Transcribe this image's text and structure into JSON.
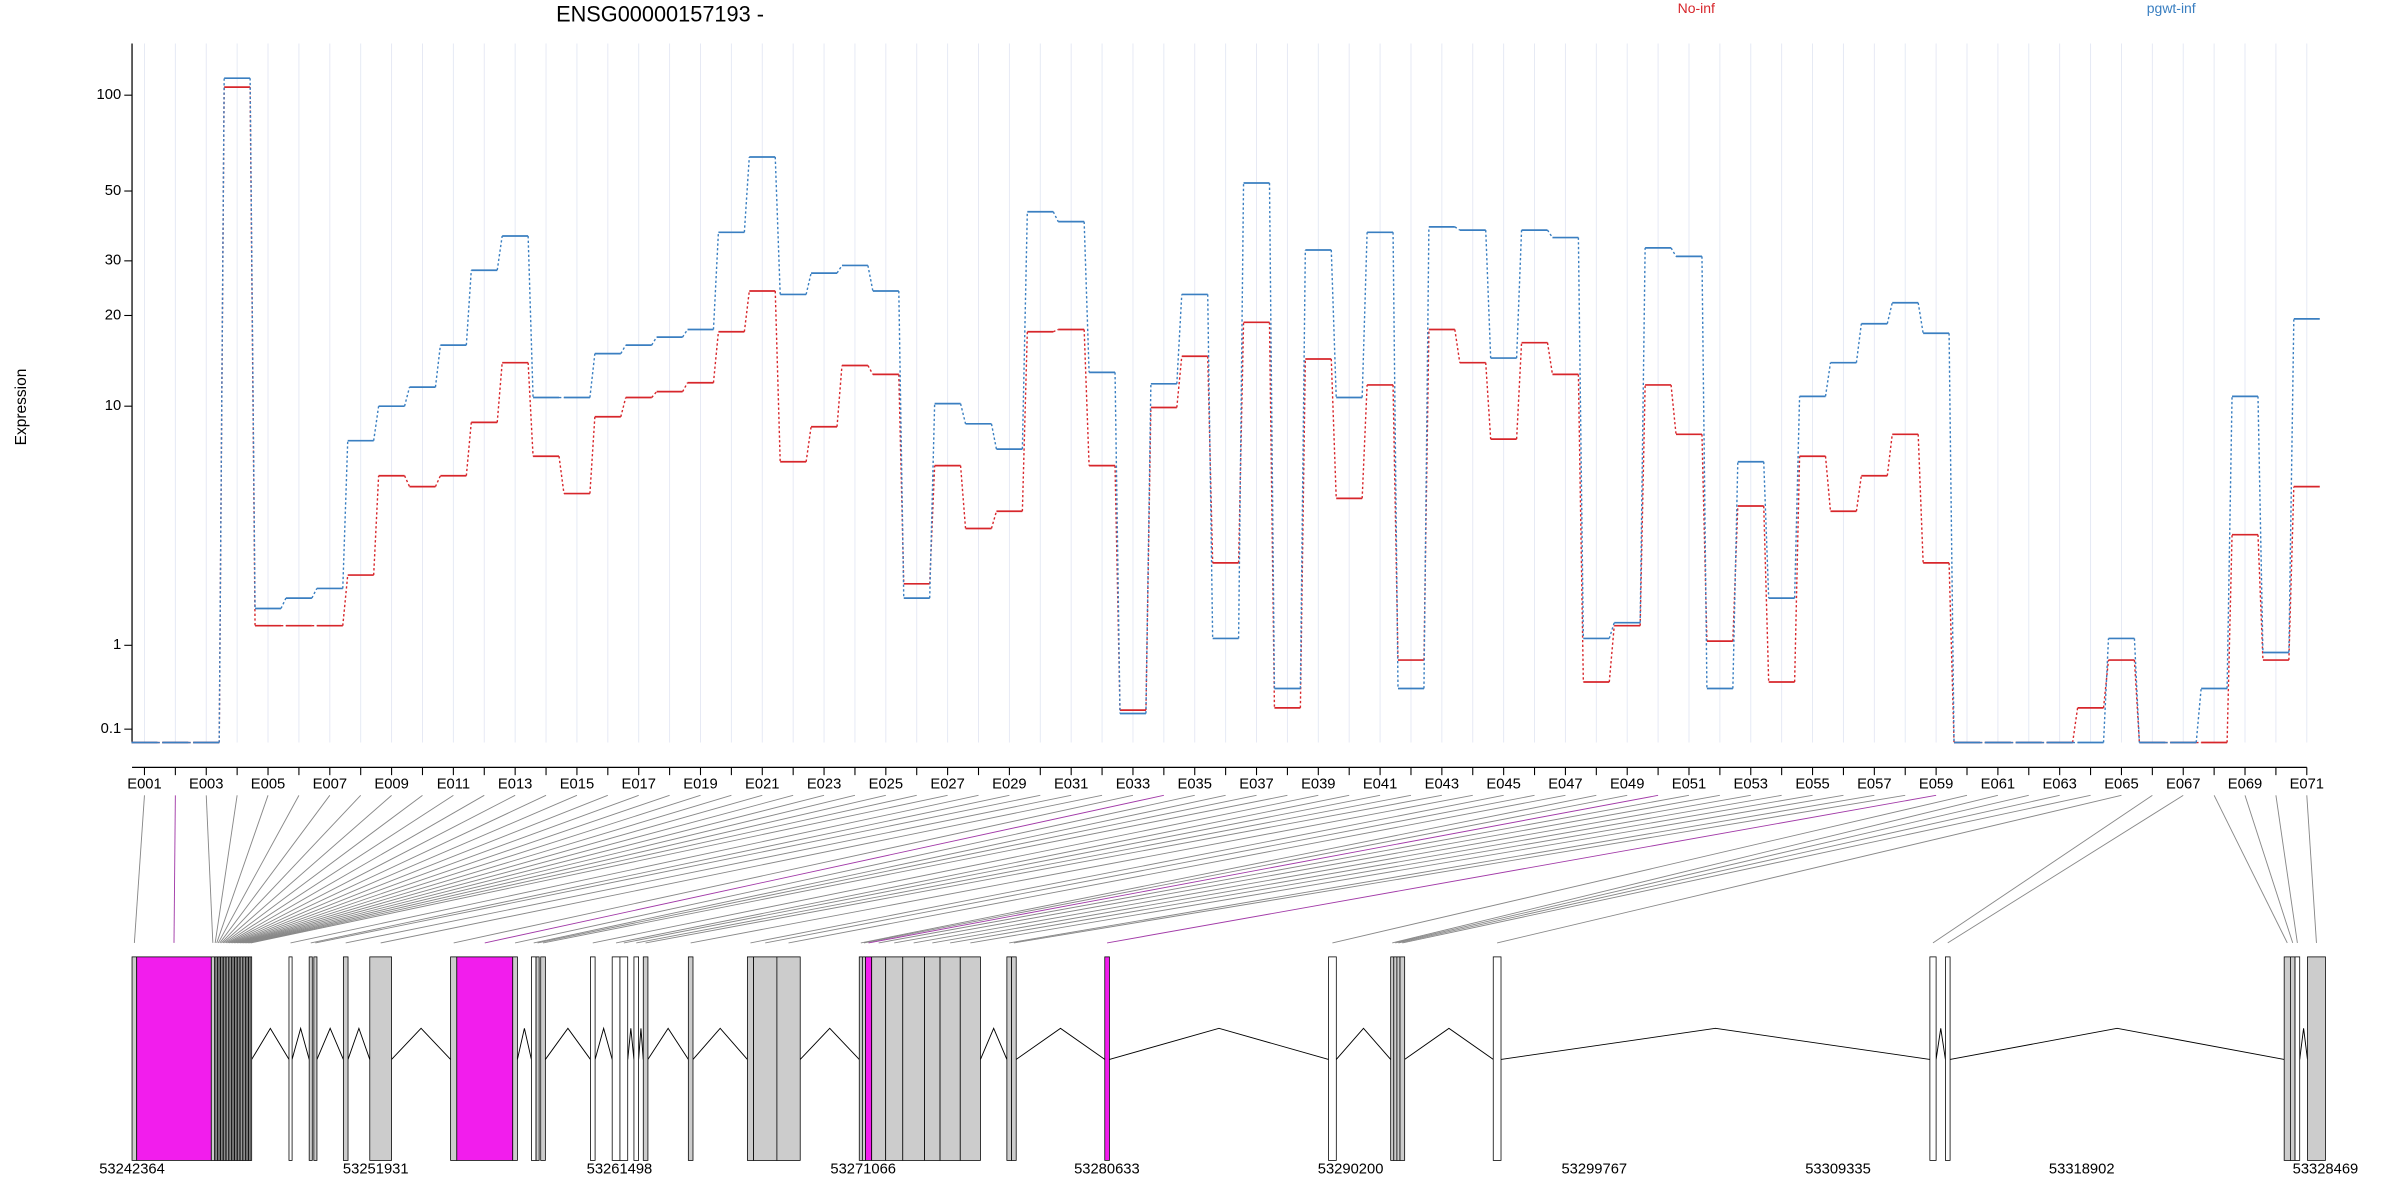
{
  "chart_data": {
    "type": "line",
    "title": "ENSG00000157193 -",
    "y_label": "Expression",
    "yscale": "log1p",
    "steps": true,
    "grid": true,
    "categories": [
      "E001",
      null,
      "E003",
      null,
      "E005",
      null,
      "E007",
      null,
      "E009",
      null,
      "E011",
      null,
      "E013",
      null,
      "E015",
      null,
      "E017",
      null,
      "E019",
      null,
      "E021",
      null,
      "E023",
      null,
      "E025",
      null,
      "E027",
      null,
      "E029",
      null,
      "E031",
      null,
      "E033",
      null,
      "E035",
      null,
      "E037",
      null,
      "E039",
      null,
      "E041",
      null,
      "E043",
      null,
      "E045",
      null,
      "E047",
      null,
      "E049",
      null,
      "E051",
      null,
      "E053",
      null,
      "E055",
      null,
      "E057",
      null,
      "E059",
      null,
      "E061",
      null,
      "E063",
      null,
      "E065",
      null,
      "E067",
      null,
      "E069",
      null,
      "E071"
    ],
    "series": [
      {
        "name": "No-inf",
        "color": "#d7262b",
        "values": [
          0,
          0,
          0,
          106,
          1.3,
          1.3,
          1.3,
          2.3,
          5.7,
          5.2,
          5.7,
          8.8,
          14,
          6.7,
          4.9,
          9.2,
          10.7,
          11.2,
          12,
          17.7,
          24,
          6.4,
          8.5,
          13.7,
          12.8,
          2.1,
          6.2,
          3.6,
          4.2,
          17.7,
          18,
          6.2,
          0.26,
          9.9,
          14.7,
          2.6,
          19,
          0.28,
          14.4,
          4.7,
          11.8,
          0.8,
          18,
          14,
          7.7,
          16.3,
          12.8,
          0.54,
          1.3,
          11.8,
          8,
          1.06,
          4.4,
          0.54,
          6.7,
          4.2,
          5.7,
          8,
          2.6,
          0,
          0,
          0,
          0,
          0.28,
          0.8,
          0,
          0,
          0,
          3.4,
          0.8,
          5.2
        ]
      },
      {
        "name": "pgwt-inf",
        "color": "#3a7fc1",
        "values": [
          0,
          0,
          0,
          113,
          1.6,
          1.8,
          2.0,
          7.6,
          10,
          11.6,
          16,
          28,
          36,
          10.7,
          10.7,
          15,
          16,
          17,
          18,
          37,
          64,
          23.4,
          27.4,
          29,
          24,
          1.8,
          10.2,
          8.7,
          7.1,
          43,
          40,
          13,
          0.23,
          11.9,
          23.4,
          1.1,
          53,
          0.47,
          32.5,
          10.7,
          37,
          0.47,
          38.5,
          37.6,
          14.5,
          37.6,
          35.6,
          1.1,
          1.35,
          33,
          31,
          0.47,
          6.4,
          1.8,
          10.8,
          14,
          18.8,
          22,
          17.5,
          0,
          0,
          0,
          0,
          0,
          1.1,
          0,
          0,
          0.47,
          10.8,
          0.9,
          19.5
        ]
      }
    ],
    "ylim": [
      0,
      145
    ],
    "yticks": [
      0.1,
      1,
      10,
      20,
      30,
      50,
      100
    ],
    "gene_model": {
      "xlim": [
        53242364,
        53328469
      ],
      "xticks": [
        53242364,
        53251931,
        53261498,
        53271066,
        53280633,
        53290200,
        53299767,
        53309335,
        53318902,
        53328469
      ],
      "starts": [
        53242364,
        53242547,
        53245475,
        53245597,
        53245658,
        53245719,
        53245780,
        53245841,
        53245902,
        53245963,
        53246024,
        53246085,
        53246146,
        53246207,
        53246268,
        53246329,
        53246390,
        53246451,
        53246512,
        53246573,
        53246634,
        53246695,
        53246756,
        53246817,
        53246878,
        53246939,
        53247000,
        53248525,
        53249318,
        53249501,
        53250660,
        53251697,
        53254869,
        53255113,
        53257309,
        53258041,
        53258224,
        53258407,
        53260359,
        53261213,
        53261518,
        53262067,
        53262433,
        53264202,
        53266520,
        53266764,
        53267679,
        53270912,
        53271034,
        53271156,
        53271400,
        53271949,
        53272620,
        53273474,
        53274084,
        53274877,
        53276707,
        53276890,
        53280550,
        53289334,
        53291774,
        53291896,
        53292018,
        53292140,
        53295800,
        53312941,
        53313551,
        53326849,
        53327093,
        53327276,
        53327764
      ],
      "ends": [
        53242547,
        53245475,
        53245597,
        53245658,
        53245719,
        53245780,
        53245841,
        53245902,
        53245963,
        53246024,
        53246085,
        53246146,
        53246207,
        53246268,
        53246329,
        53246390,
        53246451,
        53246512,
        53246573,
        53246634,
        53246695,
        53246756,
        53246817,
        53246878,
        53246939,
        53247000,
        53247061,
        53248647,
        53249440,
        53249623,
        53250843,
        53252551,
        53255113,
        53257309,
        53257492,
        53258224,
        53258346,
        53258590,
        53260542,
        53261518,
        53261823,
        53262250,
        53262616,
        53264385,
        53266764,
        53267679,
        53268594,
        53271034,
        53271156,
        53271400,
        53271949,
        53272620,
        53273474,
        53274084,
        53274877,
        53275670,
        53276890,
        53277073,
        53280733,
        53289639,
        53291896,
        53292018,
        53292140,
        53292323,
        53296105,
        53313185,
        53313734,
        53327093,
        53327276,
        53327459,
        53328469
      ],
      "colors": [
        "#cccccc",
        "#f21ded",
        "#cccccc",
        "#cccccc",
        "#cccccc",
        "#cccccc",
        "#cccccc",
        "#cccccc",
        "#cccccc",
        "#cccccc",
        "#cccccc",
        "#cccccc",
        "#cccccc",
        "#cccccc",
        "#cccccc",
        "#cccccc",
        "#cccccc",
        "#cccccc",
        "#cccccc",
        "#cccccc",
        "#cccccc",
        "#cccccc",
        "#cccccc",
        "#cccccc",
        "#cccccc",
        "#cccccc",
        "#cccccc",
        "#ffffff",
        "#cccccc",
        "#cccccc",
        "#cccccc",
        "#cccccc",
        "#cccccc",
        "#f21ded",
        "#cccccc",
        "#ffffff",
        "#cccccc",
        "#cccccc",
        "#ffffff",
        "#ffffff",
        "#ffffff",
        "#ffffff",
        "#cccccc",
        "#cccccc",
        "#cccccc",
        "#cccccc",
        "#cccccc",
        "#cccccc",
        "#cccccc",
        "#f21ded",
        "#cccccc",
        "#cccccc",
        "#cccccc",
        "#cccccc",
        "#cccccc",
        "#cccccc",
        "#cccccc",
        "#cccccc",
        "#f21ded",
        "#ffffff",
        "#cccccc",
        "#cccccc",
        "#cccccc",
        "#cccccc",
        "#ffffff",
        "#ffffff",
        "#ffffff",
        "#cccccc",
        "#cccccc",
        "#ffffff",
        "#cccccc"
      ]
    }
  }
}
